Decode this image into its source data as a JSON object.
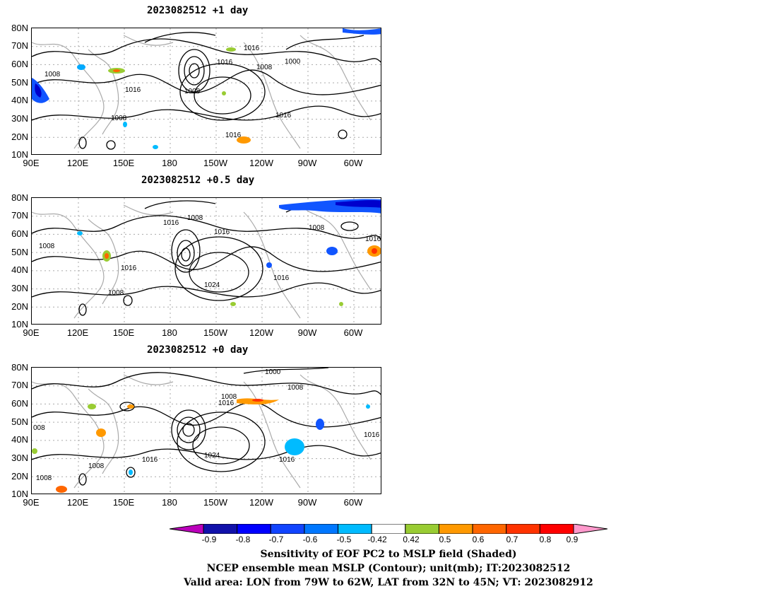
{
  "panels": [
    {
      "title": "2023082512  +1 day",
      "contour_labels": [
        "1016",
        "1016",
        "1008",
        "1000",
        "1008",
        "1016",
        "1008",
        "1008",
        "1016",
        "1016"
      ]
    },
    {
      "title": "2023082512  +0.5 day",
      "contour_labels": [
        "1008",
        "1016",
        "1016",
        "1008",
        "1016",
        "1008",
        "1016",
        "1024",
        "1016",
        "1008"
      ]
    },
    {
      "title": "2023082512  +0 day",
      "contour_labels": [
        "1000",
        "1008",
        "1008",
        "1016",
        "008",
        "1016",
        "1024",
        "1016",
        "1016",
        "1008",
        "1008"
      ]
    }
  ],
  "lat_ticks": [
    "80N",
    "70N",
    "60N",
    "50N",
    "40N",
    "30N",
    "20N",
    "10N"
  ],
  "lon_ticks": [
    "90E",
    "120E",
    "150E",
    "180",
    "150W",
    "120W",
    "90W",
    "60W"
  ],
  "colorbar": {
    "labels": [
      "-0.9",
      "-0.8",
      "-0.7",
      "-0.6",
      "-0.5",
      "-0.42",
      "0.42",
      "0.5",
      "0.6",
      "0.7",
      "0.8",
      "0.9"
    ],
    "colors": [
      "#bb00bb",
      "#1111aa",
      "#0000ff",
      "#1144ff",
      "#0077ff",
      "#00bbff",
      "#ffffff",
      "#99cc33",
      "#ff9900",
      "#ff6600",
      "#ff3300",
      "#ff0000",
      "#ff99cc"
    ]
  },
  "caption": {
    "line1": "Sensitivity of EOF PC2 to MSLP field (Shaded)",
    "line2": "NCEP ensemble mean MSLP (Contour); unit(mb); IT:2023082512",
    "line3": "Valid area: LON from 79W to 62W, LAT from 32N to 45N; VT: 2023082912"
  }
}
